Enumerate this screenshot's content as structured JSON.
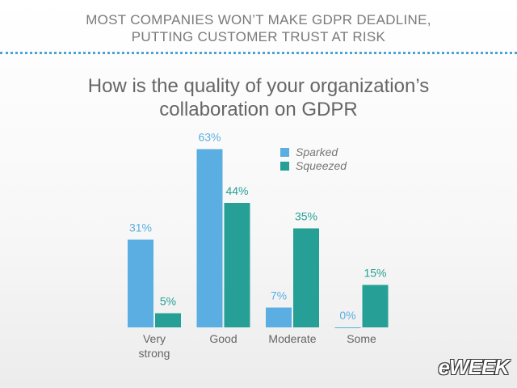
{
  "header": {
    "lines": [
      "MOST COMPANIES WON’T MAKE GDPR DEADLINE,",
      "PUTTING CUSTOMER TRUST AT RISK"
    ]
  },
  "logo": "eWEEK",
  "chart_data": {
    "type": "bar",
    "title": "How is the quality of your organization’s collaboration on GDPR",
    "categories": [
      "Very strong",
      "Good",
      "Moderate",
      "Some"
    ],
    "series": [
      {
        "name": "Sparked",
        "color": "#5aaee2",
        "values": [
          31,
          63,
          7,
          0
        ],
        "value_labels": [
          "31%",
          "63%",
          "7%",
          "0%"
        ]
      },
      {
        "name": "Squeezed",
        "color": "#26a096",
        "values": [
          5,
          44,
          35,
          15
        ],
        "value_labels": [
          "5%",
          "44%",
          "35%",
          "15%"
        ]
      }
    ]
  }
}
